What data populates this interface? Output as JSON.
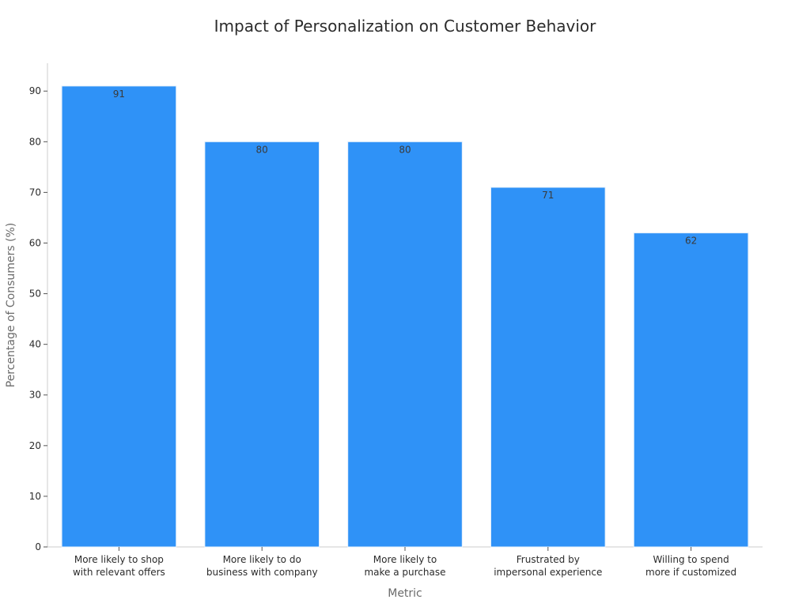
{
  "chart_data": {
    "type": "bar",
    "title": "Impact of Personalization on Customer Behavior",
    "xlabel": "Metric",
    "ylabel": "Percentage of Consumers (%)",
    "categories": [
      [
        "More likely to shop",
        "with relevant offers"
      ],
      [
        "More likely to do",
        "business with company"
      ],
      [
        "More likely to",
        "make a purchase"
      ],
      [
        "Frustrated by",
        "impersonal experience"
      ],
      [
        "Willing to spend",
        "more if customized"
      ]
    ],
    "values": [
      91,
      80,
      80,
      71,
      62
    ],
    "ylim": [
      0,
      95.5
    ],
    "yticks": [
      0,
      10,
      20,
      30,
      40,
      50,
      60,
      70,
      80,
      90
    ],
    "grid": false,
    "legend": "none",
    "colors": {
      "bar": "#2f92f7",
      "bar_edge": "#e6f0fb",
      "axis": "#cccccc"
    }
  }
}
